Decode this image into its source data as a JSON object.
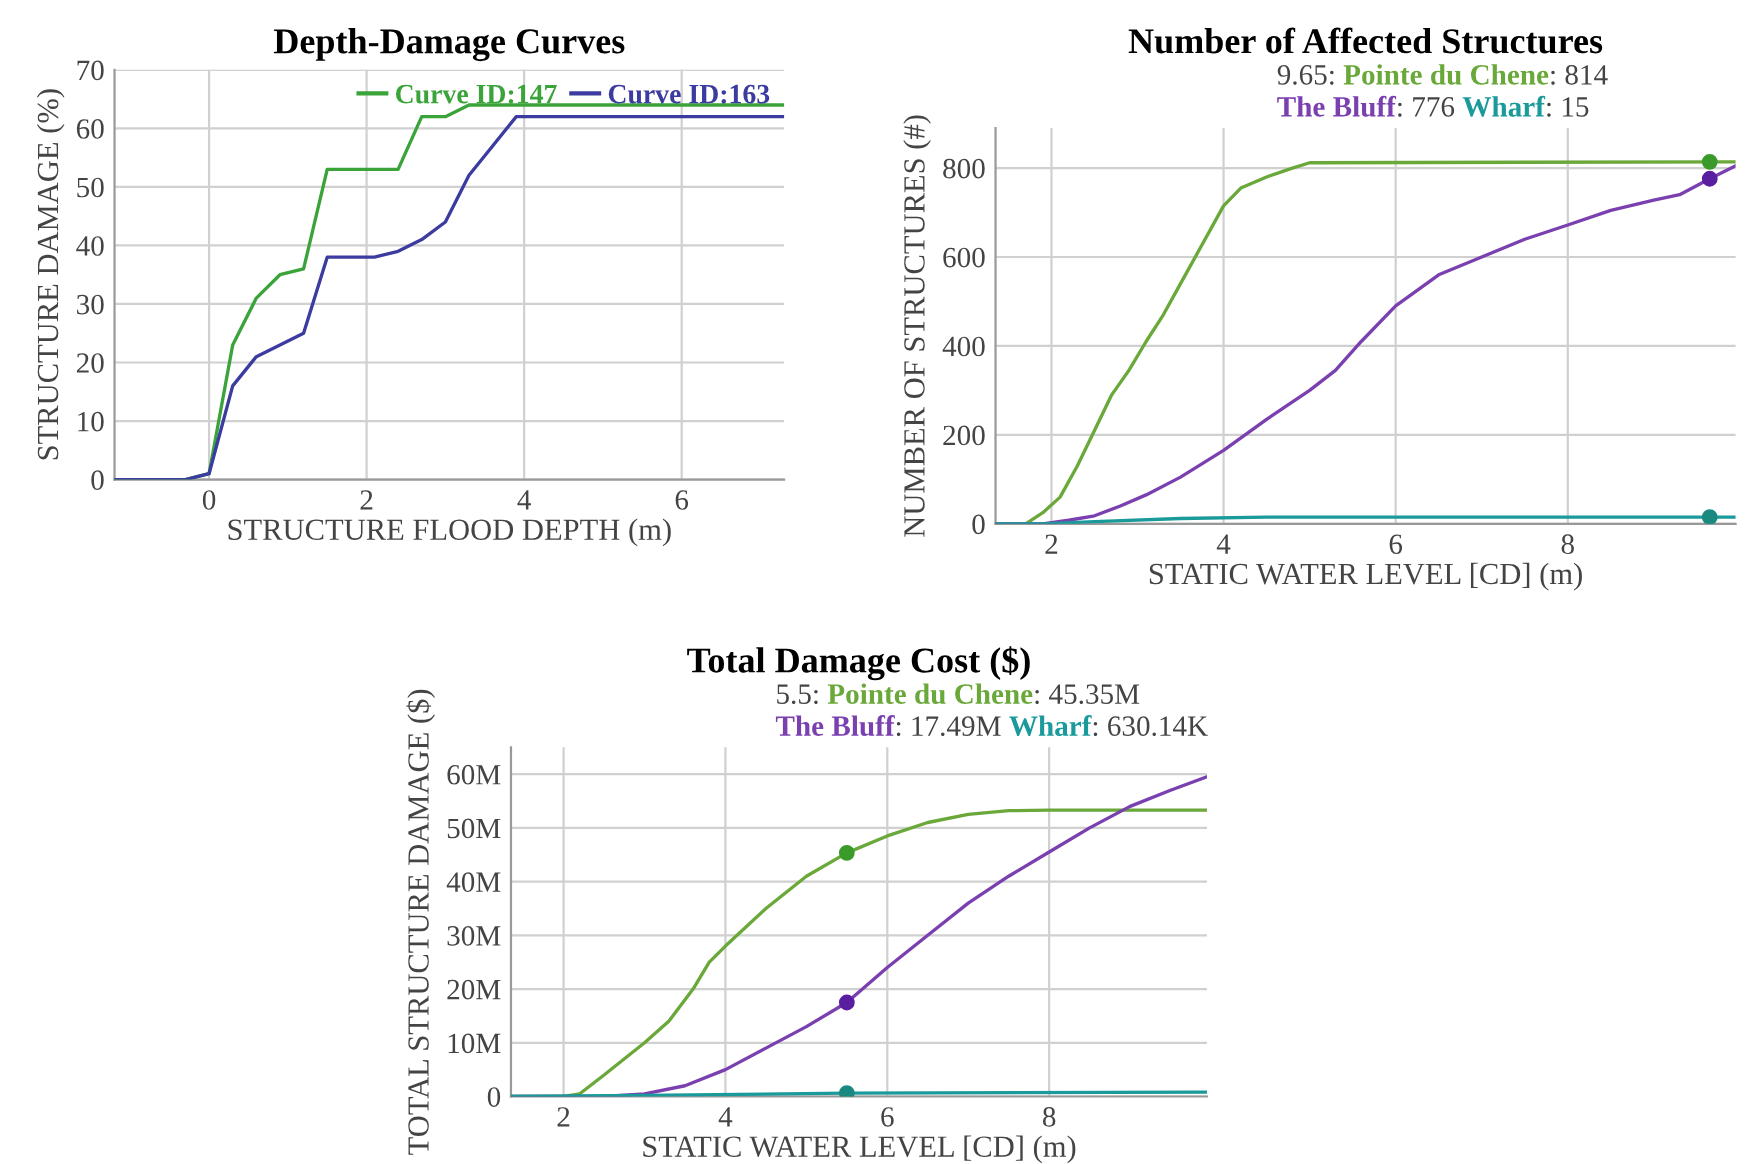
{
  "chart_data": [
    {
      "type": "line",
      "title": "Depth-Damage Curves",
      "xlabel": "STRUCTURE FLOOD DEPTH (m)",
      "ylabel": "STRUCTURE DAMAGE (%)",
      "xlim": [
        -1.2,
        7.3
      ],
      "xticks": [
        0,
        2,
        4,
        6
      ],
      "ylim": [
        0,
        70
      ],
      "yticks": [
        0,
        10,
        20,
        30,
        40,
        50,
        60,
        70
      ],
      "grid": true,
      "legend": "top right",
      "marker": "none",
      "line_style": "solid",
      "series": [
        {
          "name": "Curve ID:147",
          "color": "#3aa33a",
          "x": [
            -1.2,
            -0.3,
            0,
            0.3,
            0.6,
            0.9,
            1.2,
            1.5,
            2.4,
            2.7,
            3.0,
            3.3,
            7.3
          ],
          "values": [
            0,
            0,
            1,
            23,
            31,
            35,
            36,
            53,
            53,
            62,
            62,
            64,
            64
          ]
        },
        {
          "name": "Curve ID:163",
          "color": "#3b3ba0",
          "x": [
            -1.2,
            -0.3,
            0,
            0.3,
            0.6,
            0.9,
            1.2,
            1.5,
            2.1,
            2.4,
            2.7,
            3.0,
            3.3,
            3.6,
            3.9,
            7.3
          ],
          "values": [
            0,
            0,
            1,
            16,
            21,
            23,
            25,
            38,
            38,
            39,
            41,
            44,
            52,
            57,
            62,
            62
          ]
        }
      ]
    },
    {
      "type": "line",
      "title": "Number of Affected Structures",
      "xlabel": "STATIC WATER LEVEL [CD] (m)",
      "ylabel": "NUMBER OF STRUCTURES (#)",
      "xlim": [
        1.35,
        9.95
      ],
      "xticks": [
        2,
        4,
        6,
        8
      ],
      "ylim": [
        0,
        890
      ],
      "yticks": [
        0,
        200,
        400,
        600,
        800
      ],
      "grid": true,
      "line_style": "solid",
      "annotations": [
        "9.65: ",
        ": 814 ",
        ": 776 ",
        ": 15"
      ],
      "series": [
        {
          "name": "Pointe du Chene",
          "color": "#6aa83a",
          "x": [
            1.35,
            1.7,
            1.9,
            2.1,
            2.3,
            2.5,
            2.7,
            2.9,
            3.1,
            3.3,
            3.5,
            3.7,
            3.9,
            4.0,
            4.2,
            4.5,
            4.8,
            5.0,
            9.95
          ],
          "values": [
            0,
            0,
            25,
            60,
            130,
            210,
            290,
            345,
            410,
            470,
            540,
            610,
            680,
            715,
            755,
            780,
            800,
            812,
            814
          ]
        },
        {
          "name": "The Bluff",
          "color": "#7a40b0",
          "x": [
            1.35,
            1.9,
            2.2,
            2.5,
            2.8,
            3.1,
            3.5,
            4.0,
            4.5,
            5.0,
            5.3,
            5.6,
            6.0,
            6.5,
            7.0,
            7.5,
            8.0,
            8.5,
            9.0,
            9.3,
            9.65,
            9.95
          ],
          "values": [
            0,
            0,
            8,
            18,
            40,
            65,
            105,
            165,
            235,
            300,
            345,
            410,
            490,
            560,
            600,
            640,
            672,
            705,
            728,
            740,
            776,
            805
          ]
        },
        {
          "name": "Wharf",
          "color": "#1a9a9a",
          "x": [
            1.35,
            1.9,
            2.5,
            3.5,
            4.5,
            9.95
          ],
          "values": [
            0,
            0,
            5,
            12,
            15,
            15
          ]
        },
        {
          "type": "scatter",
          "marker": "circle",
          "color": "#3a9a2a",
          "x": [
            9.65
          ],
          "values": [
            814
          ]
        },
        {
          "type": "scatter",
          "marker": "circle",
          "color": "#5a1ea0",
          "x": [
            9.65
          ],
          "values": [
            776
          ]
        },
        {
          "type": "scatter",
          "marker": "circle",
          "color": "#1a8a80",
          "x": [
            9.65
          ],
          "values": [
            15
          ]
        }
      ]
    },
    {
      "type": "line",
      "title": "Total Damage Cost ($)",
      "xlabel": "STATIC WATER LEVEL [CD] (m)",
      "ylabel": "TOTAL STRUCTURE DAMAGE ($)",
      "xlim": [
        1.35,
        9.95
      ],
      "xticks": [
        2,
        4,
        6,
        8
      ],
      "ylim": [
        0,
        65
      ],
      "yticks": [
        0,
        {
          "value": 10,
          "label": "10M"
        },
        {
          "value": 20,
          "label": "20M"
        },
        {
          "value": 30,
          "label": "30M"
        },
        {
          "value": 40,
          "label": "40M"
        },
        {
          "value": 50,
          "label": "50M"
        },
        {
          "value": 60,
          "label": "60M"
        }
      ],
      "grid": true,
      "line_style": "solid",
      "annotations": [
        "5.5: ",
        ": 45.35M ",
        ": 17.49M ",
        ": 630.14K"
      ],
      "series": [
        {
          "name": "Pointe du Chene",
          "color": "#6aa83a",
          "x": [
            1.35,
            2.0,
            2.2,
            2.5,
            3.0,
            3.3,
            3.6,
            3.8,
            4.0,
            4.5,
            5.0,
            5.5,
            6.0,
            6.5,
            7.0,
            7.5,
            8.0,
            9.95
          ],
          "values": [
            0,
            0,
            0.5,
            4,
            10,
            14,
            20,
            25,
            28,
            35,
            41,
            45.35,
            48.5,
            51,
            52.5,
            53.2,
            53.3,
            53.3
          ]
        },
        {
          "name": "The Bluff",
          "color": "#7a40b0",
          "x": [
            1.35,
            2.5,
            3.0,
            3.5,
            4.0,
            4.5,
            5.0,
            5.5,
            6.0,
            6.5,
            7.0,
            7.5,
            8.0,
            8.5,
            9.0,
            9.5,
            9.95
          ],
          "values": [
            0,
            0,
            0.5,
            2,
            5,
            9,
            13,
            17.49,
            24,
            30,
            36,
            41,
            45.5,
            50,
            54,
            57,
            59.5
          ]
        },
        {
          "name": "Wharf",
          "color": "#1a9a9a",
          "x": [
            1.35,
            3.0,
            5.5,
            9.95
          ],
          "values": [
            0,
            0.2,
            0.63,
            0.8
          ]
        },
        {
          "type": "scatter",
          "marker": "circle",
          "color": "#3a9a2a",
          "x": [
            5.5
          ],
          "values": [
            45.35
          ]
        },
        {
          "type": "scatter",
          "marker": "circle",
          "color": "#5a1ea0",
          "x": [
            5.5
          ],
          "values": [
            17.49
          ]
        },
        {
          "type": "scatter",
          "marker": "circle",
          "color": "#1a8a80",
          "x": [
            5.5
          ],
          "values": [
            0.63
          ]
        }
      ]
    }
  ]
}
